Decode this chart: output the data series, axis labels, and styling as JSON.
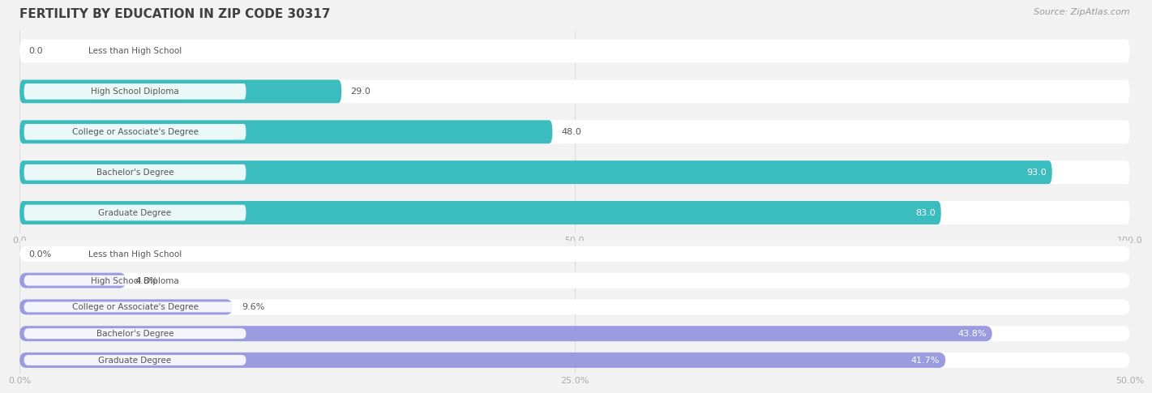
{
  "title": "FERTILITY BY EDUCATION IN ZIP CODE 30317",
  "source": "Source: ZipAtlas.com",
  "top_chart": {
    "categories": [
      "Less than High School",
      "High School Diploma",
      "College or Associate's Degree",
      "Bachelor's Degree",
      "Graduate Degree"
    ],
    "values": [
      0.0,
      29.0,
      48.0,
      93.0,
      83.0
    ],
    "xlim": [
      0,
      100
    ],
    "xticks": [
      0.0,
      50.0,
      100.0
    ],
    "xtick_labels": [
      "0.0",
      "50.0",
      "100.0"
    ],
    "bar_color": "#3bbcbe",
    "value_suffix": ""
  },
  "bottom_chart": {
    "categories": [
      "Less than High School",
      "High School Diploma",
      "College or Associate's Degree",
      "Bachelor's Degree",
      "Graduate Degree"
    ],
    "values": [
      0.0,
      4.8,
      9.6,
      43.8,
      41.7
    ],
    "xlim": [
      0,
      50
    ],
    "xticks": [
      0.0,
      25.0,
      50.0
    ],
    "xtick_labels": [
      "0.0%",
      "25.0%",
      "50.0%"
    ],
    "bar_color": "#9b9be0",
    "value_suffix": "%"
  },
  "bg_color": "#f2f2f2",
  "bar_bg_color": "#ffffff",
  "label_box_color": "#ffffff",
  "label_text_color": "#555555",
  "title_color": "#404040",
  "source_color": "#999999",
  "tick_color": "#aaaaaa",
  "grid_color": "#dddddd",
  "title_fontsize": 11,
  "bar_label_fontsize": 7.5,
  "value_fontsize": 8,
  "tick_fontsize": 8,
  "source_fontsize": 8
}
